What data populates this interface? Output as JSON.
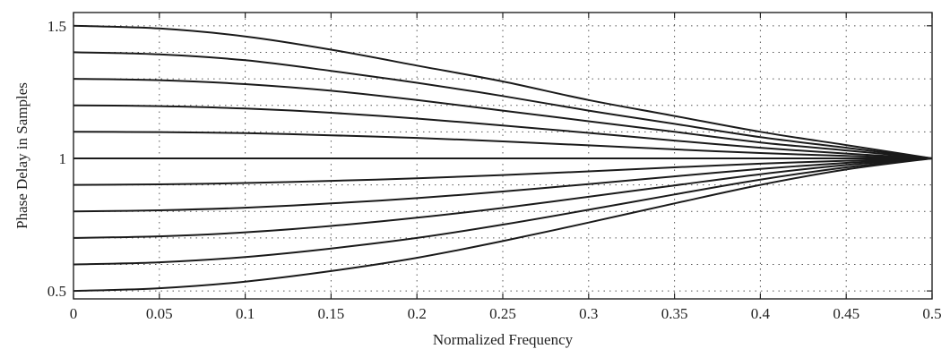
{
  "chart_data": {
    "type": "line",
    "xlabel": "Normalized Frequency",
    "ylabel": "Phase Delay in Samples",
    "xlim": [
      0,
      0.5
    ],
    "ylim": [
      0.47,
      1.55
    ],
    "x_ticks": [
      "0",
      "0.05",
      "0.1",
      "0.15",
      "0.2",
      "0.25",
      "0.3",
      "0.35",
      "0.4",
      "0.45",
      "0.5"
    ],
    "y_ticks": [
      "0.5",
      "1",
      "1.5"
    ],
    "y_tick_values": [
      0.5,
      1,
      1.5
    ],
    "grid": true,
    "x": [
      0,
      0.05,
      0.1,
      0.15,
      0.2,
      0.25,
      0.3,
      0.35,
      0.4,
      0.45,
      0.5
    ],
    "series": [
      {
        "values": [
          1.5,
          1.49,
          1.46,
          1.41,
          1.35,
          1.29,
          1.22,
          1.16,
          1.1,
          1.05,
          1.0
        ]
      },
      {
        "values": [
          1.4,
          1.392,
          1.37,
          1.33,
          1.285,
          1.235,
          1.18,
          1.13,
          1.08,
          1.04,
          1.0
        ]
      },
      {
        "values": [
          1.3,
          1.295,
          1.28,
          1.255,
          1.22,
          1.18,
          1.14,
          1.1,
          1.06,
          1.03,
          1.0
        ]
      },
      {
        "values": [
          1.2,
          1.197,
          1.188,
          1.172,
          1.15,
          1.124,
          1.096,
          1.067,
          1.04,
          1.018,
          1.0
        ]
      },
      {
        "values": [
          1.1,
          1.099,
          1.095,
          1.087,
          1.077,
          1.064,
          1.049,
          1.034,
          1.02,
          1.009,
          1.0
        ]
      },
      {
        "values": [
          1.0,
          1.0,
          1.0,
          1.0,
          1.0,
          1.0,
          1.0,
          1.0,
          1.0,
          1.0,
          1.0
        ]
      },
      {
        "values": [
          0.9,
          0.902,
          0.907,
          0.915,
          0.925,
          0.937,
          0.951,
          0.966,
          0.98,
          0.991,
          1.0
        ]
      },
      {
        "values": [
          0.8,
          0.804,
          0.814,
          0.83,
          0.85,
          0.875,
          0.903,
          0.932,
          0.96,
          0.983,
          1.0
        ]
      },
      {
        "values": [
          0.7,
          0.706,
          0.721,
          0.745,
          0.776,
          0.813,
          0.855,
          0.898,
          0.94,
          0.975,
          1.0
        ]
      },
      {
        "values": [
          0.6,
          0.608,
          0.628,
          0.66,
          0.7,
          0.75,
          0.806,
          0.864,
          0.92,
          0.966,
          1.0
        ]
      },
      {
        "values": [
          0.5,
          0.51,
          0.535,
          0.575,
          0.625,
          0.688,
          0.758,
          0.83,
          0.9,
          0.958,
          1.0
        ]
      }
    ]
  }
}
